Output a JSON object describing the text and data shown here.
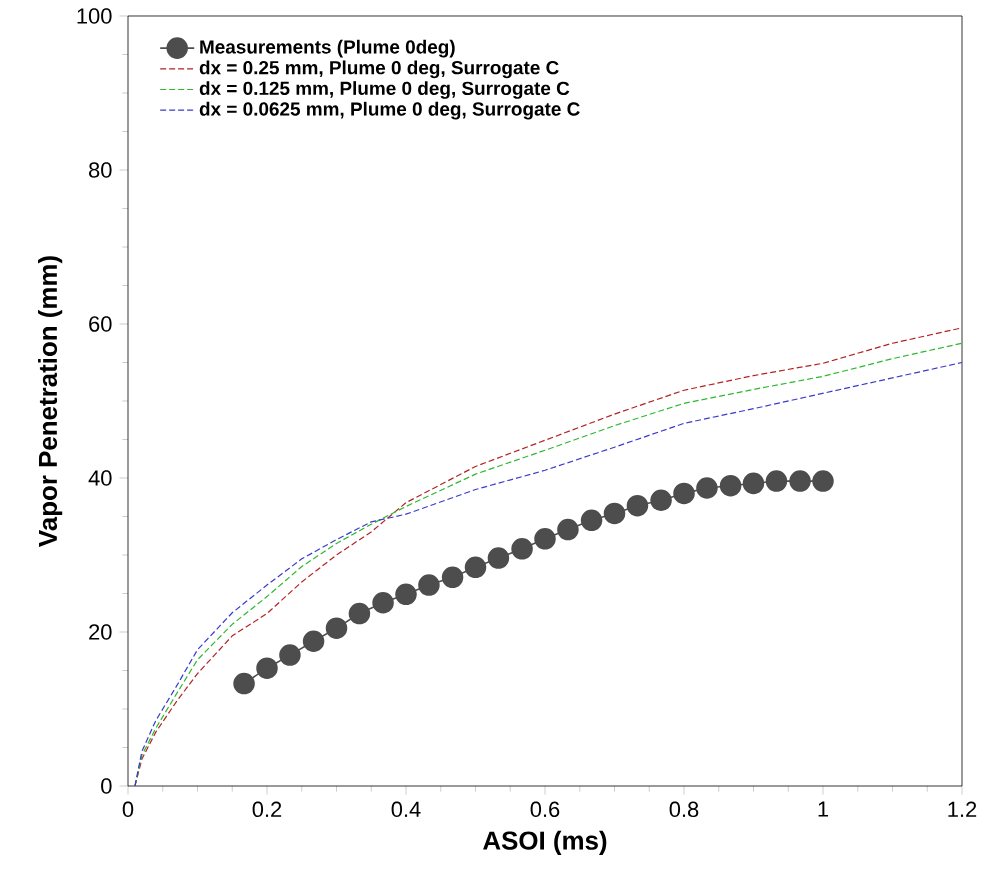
{
  "chart_data": {
    "type": "line",
    "xlabel": "ASOI (ms)",
    "ylabel": "Vapor Penetration (mm)",
    "xlim": [
      0,
      1.2
    ],
    "ylim": [
      0,
      100
    ],
    "xticks": [
      0,
      0.2,
      0.4,
      0.6,
      0.8,
      1,
      1.2
    ],
    "yticks": [
      0,
      20,
      40,
      60,
      80,
      100
    ],
    "grid": false,
    "legend": "top left",
    "series": [
      {
        "name": "Measurements (Plume 0deg)",
        "color": "#4d4d4d",
        "marker": "circle",
        "line_style": "solid",
        "x": [
          0.167,
          0.2,
          0.233,
          0.267,
          0.3,
          0.333,
          0.367,
          0.4,
          0.433,
          0.467,
          0.5,
          0.533,
          0.567,
          0.6,
          0.633,
          0.667,
          0.7,
          0.733,
          0.767,
          0.8,
          0.833,
          0.867,
          0.9,
          0.933,
          0.967,
          1.0
        ],
        "values": [
          13.3,
          15.3,
          17.0,
          18.8,
          20.5,
          22.4,
          23.8,
          24.9,
          26.1,
          27.1,
          28.4,
          29.6,
          30.8,
          32.1,
          33.3,
          34.5,
          35.4,
          36.4,
          37.1,
          38.0,
          38.7,
          39.0,
          39.3,
          39.6,
          39.6,
          39.6
        ]
      },
      {
        "name": "dx = 0.25 mm,    Plume 0 deg, Surrogate C",
        "color": "#b22222",
        "marker": "none",
        "line_style": "dashed",
        "x": [
          0.01,
          0.02,
          0.04,
          0.07,
          0.1,
          0.15,
          0.2,
          0.25,
          0.3,
          0.35,
          0.4,
          0.5,
          0.6,
          0.7,
          0.8,
          0.9,
          1.0,
          1.1,
          1.2
        ],
        "values": [
          0,
          3.5,
          7,
          11,
          14.6,
          19.5,
          22.4,
          26.5,
          30,
          33,
          36.8,
          41.5,
          44.9,
          48.3,
          51.4,
          53.3,
          54.9,
          57.5,
          59.5
        ]
      },
      {
        "name": "dx = 0.125 mm,   Plume 0 deg, Surrogate C",
        "color": "#2eb82e",
        "marker": "none",
        "line_style": "dashed",
        "x": [
          0.01,
          0.02,
          0.04,
          0.07,
          0.1,
          0.15,
          0.2,
          0.25,
          0.3,
          0.35,
          0.4,
          0.5,
          0.6,
          0.7,
          0.8,
          0.9,
          1.0,
          1.1,
          1.2
        ],
        "values": [
          0,
          4,
          7.5,
          12,
          16.4,
          21,
          24.6,
          28.5,
          31.5,
          34,
          36.3,
          40.5,
          43.6,
          46.8,
          49.7,
          51.5,
          53.2,
          55.5,
          57.5
        ]
      },
      {
        "name": "dx = 0.0625 mm, Plume 0 deg, Surrogate C",
        "color": "#3a3acc",
        "marker": "none",
        "line_style": "dashed",
        "x": [
          0.01,
          0.02,
          0.04,
          0.07,
          0.1,
          0.15,
          0.2,
          0.25,
          0.3,
          0.35,
          0.4,
          0.5,
          0.6,
          0.7,
          0.8,
          0.9,
          1.0,
          1.1,
          1.2
        ],
        "values": [
          0,
          4.5,
          8.5,
          13,
          17.7,
          22.5,
          26.1,
          29.5,
          32,
          34.3,
          35.3,
          38.5,
          41,
          44,
          47.1,
          49,
          51,
          53,
          55
        ]
      }
    ]
  }
}
